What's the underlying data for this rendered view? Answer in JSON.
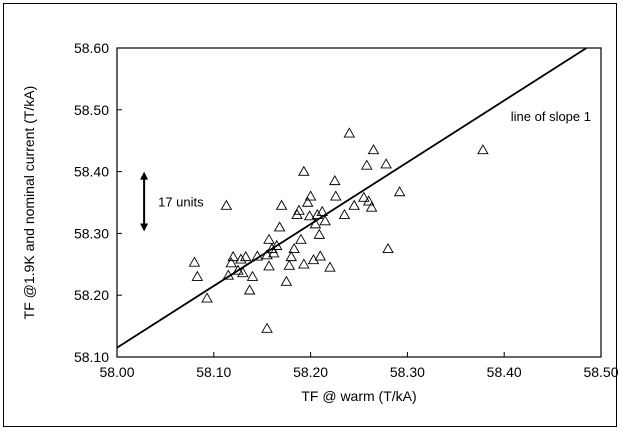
{
  "chart_data": {
    "type": "scatter",
    "xlabel": "TF @ warm (T/kA)",
    "ylabel": "TF @1.9K and nominal current (T/kA)",
    "xlim": [
      58.0,
      58.5
    ],
    "ylim": [
      58.1,
      58.6
    ],
    "x_ticks": [
      "58.00",
      "58.10",
      "58.20",
      "58.30",
      "58.40",
      "58.50"
    ],
    "y_ticks": [
      "58.10",
      "58.20",
      "58.30",
      "58.40",
      "58.50",
      "58.60"
    ],
    "x_tick_values": [
      58.0,
      58.1,
      58.2,
      58.3,
      58.4,
      58.5
    ],
    "y_tick_values": [
      58.1,
      58.2,
      58.3,
      58.4,
      58.5,
      58.6
    ],
    "grid": false,
    "marker": "open-triangle",
    "points": [
      [
        58.08,
        58.253
      ],
      [
        58.083,
        58.23
      ],
      [
        58.093,
        58.195
      ],
      [
        58.113,
        58.345
      ],
      [
        58.115,
        58.232
      ],
      [
        58.118,
        58.252
      ],
      [
        58.12,
        58.262
      ],
      [
        58.125,
        58.24
      ],
      [
        58.128,
        58.258
      ],
      [
        58.13,
        58.236
      ],
      [
        58.133,
        58.262
      ],
      [
        58.137,
        58.208
      ],
      [
        58.14,
        58.23
      ],
      [
        58.145,
        58.263
      ],
      [
        58.155,
        58.146
      ],
      [
        58.155,
        58.265
      ],
      [
        58.157,
        58.29
      ],
      [
        58.157,
        58.247
      ],
      [
        58.16,
        58.275
      ],
      [
        58.162,
        58.268
      ],
      [
        58.165,
        58.28
      ],
      [
        58.168,
        58.31
      ],
      [
        58.17,
        58.345
      ],
      [
        58.175,
        58.222
      ],
      [
        58.178,
        58.248
      ],
      [
        58.18,
        58.262
      ],
      [
        58.183,
        58.275
      ],
      [
        58.186,
        58.33
      ],
      [
        58.188,
        58.337
      ],
      [
        58.19,
        58.29
      ],
      [
        58.193,
        58.4
      ],
      [
        58.193,
        58.25
      ],
      [
        58.197,
        58.35
      ],
      [
        58.199,
        58.328
      ],
      [
        58.2,
        58.36
      ],
      [
        58.203,
        58.257
      ],
      [
        58.205,
        58.315
      ],
      [
        58.207,
        58.33
      ],
      [
        58.209,
        58.298
      ],
      [
        58.21,
        58.263
      ],
      [
        58.212,
        58.335
      ],
      [
        58.215,
        58.32
      ],
      [
        58.22,
        58.245
      ],
      [
        58.225,
        58.385
      ],
      [
        58.226,
        58.36
      ],
      [
        58.235,
        58.33
      ],
      [
        58.24,
        58.462
      ],
      [
        58.245,
        58.345
      ],
      [
        58.255,
        58.358
      ],
      [
        58.258,
        58.41
      ],
      [
        58.26,
        58.352
      ],
      [
        58.263,
        58.342
      ],
      [
        58.265,
        58.435
      ],
      [
        58.278,
        58.412
      ],
      [
        58.28,
        58.275
      ],
      [
        58.292,
        58.367
      ],
      [
        58.378,
        58.435
      ]
    ],
    "fit_line": {
      "label": "line of slope 1",
      "slope": 1,
      "intercept": 0.115
    },
    "interval_annotation": {
      "label": "17 units",
      "y_from": 58.303,
      "y_to": 58.4,
      "x": 58.028
    }
  },
  "colors": {
    "marker": "#000000",
    "line": "#000000",
    "axis": "#000000",
    "background": "#ffffff"
  }
}
